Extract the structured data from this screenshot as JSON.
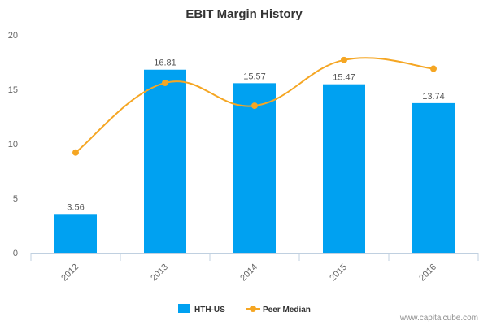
{
  "chart_data": {
    "type": "bar",
    "title": "EBIT Margin History",
    "categories": [
      "2012",
      "2013",
      "2014",
      "2015",
      "2016"
    ],
    "ylim": [
      0,
      20
    ],
    "yticks": [
      "0",
      "5",
      "10",
      "15",
      "20"
    ],
    "series": [
      {
        "name": "HTH-US",
        "type": "bar",
        "values": [
          3.56,
          16.81,
          15.57,
          15.47,
          13.74
        ],
        "labels": [
          "3.56",
          "16.81",
          "15.57",
          "15.47",
          "13.74"
        ]
      },
      {
        "name": "Peer Median",
        "type": "line",
        "values": [
          9.2,
          15.6,
          13.5,
          17.7,
          16.9
        ]
      }
    ],
    "legend_position": "bottom-center",
    "grid": false
  },
  "colors": {
    "bar": "#00a1f1",
    "line": "#f5a623",
    "axis": "#c0d0e0"
  },
  "credit": "www.capitalcube.com"
}
